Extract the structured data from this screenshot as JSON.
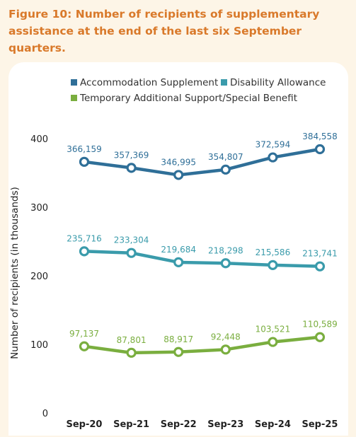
{
  "title": "Figure 10: Number of recipients of supplementary assistance at the end of the last six September quarters.",
  "chart_data": {
    "type": "line",
    "categories": [
      "Sep-20",
      "Sep-21",
      "Sep-22",
      "Sep-23",
      "Sep-24",
      "Sep-25"
    ],
    "ylabel": "Number of recipients (in thousands)",
    "ylim": [
      0,
      400
    ],
    "yticks": [
      0,
      100,
      200,
      300,
      400
    ],
    "legend_position": "top",
    "grid": false,
    "series": [
      {
        "name": "Accommodation Supplement",
        "color": "#2f6f98",
        "values": [
          366.159,
          357.369,
          346.995,
          354.807,
          372.594,
          384.558
        ],
        "labels": [
          "366,159",
          "357,369",
          "346,995",
          "354,807",
          "372,594",
          "384,558"
        ]
      },
      {
        "name": "Disability Allowance",
        "color": "#3a9bab",
        "values": [
          235.716,
          233.304,
          219.684,
          218.298,
          215.586,
          213.741
        ],
        "labels": [
          "235,716",
          "233,304",
          "219,684",
          "218,298",
          "215,586",
          "213,741"
        ]
      },
      {
        "name": "Temporary Additional Support/Special Benefit",
        "color": "#7aae3f",
        "values": [
          97.137,
          87.801,
          88.917,
          92.448,
          103.521,
          110.589
        ],
        "labels": [
          "97,137",
          "87,801",
          "88,917",
          "92,448",
          "103,521",
          "110,589"
        ]
      }
    ]
  }
}
